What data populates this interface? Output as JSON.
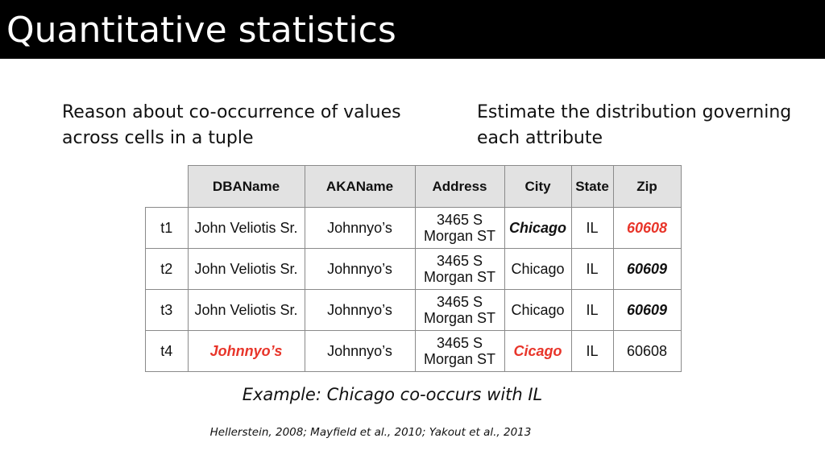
{
  "slide": {
    "title": "Quantitative statistics",
    "left_point": "Reason about co-occurrence of values across cells in a tuple",
    "right_point": "Estimate the distribution governing each attribute",
    "example": "Example: Chicago co-occurs with IL",
    "citation": "Hellerstein, 2008; Mayfield et al., 2010; Yakout et al., 2013"
  },
  "table": {
    "headers": [
      "DBAName",
      "AKAName",
      "Address",
      "City",
      "State",
      "Zip"
    ],
    "rows": [
      {
        "id": "t1",
        "dba": "John Veliotis Sr.",
        "aka": "Johnnyo’s",
        "addr1": "3465 S",
        "addr2": "Morgan ST",
        "city": "Chicago",
        "state": "IL",
        "zip": "60608"
      },
      {
        "id": "t2",
        "dba": "John Veliotis Sr.",
        "aka": "Johnnyo’s",
        "addr1": "3465 S",
        "addr2": "Morgan ST",
        "city": "Chicago",
        "state": "IL",
        "zip": "60609"
      },
      {
        "id": "t3",
        "dba": "John Veliotis Sr.",
        "aka": "Johnnyo’s",
        "addr1": "3465 S",
        "addr2": "Morgan ST",
        "city": "Chicago",
        "state": "IL",
        "zip": "60609"
      },
      {
        "id": "t4",
        "dba": "Johnnyo’s",
        "aka": "Johnnyo’s",
        "addr1": "3465 S",
        "addr2": "Morgan ST",
        "city": "Cicago",
        "state": "IL",
        "zip": "60608"
      }
    ]
  },
  "colors": {
    "title_bar": "#000000",
    "error_text": "#e8352a",
    "header_fill": "#e2e2e2"
  }
}
